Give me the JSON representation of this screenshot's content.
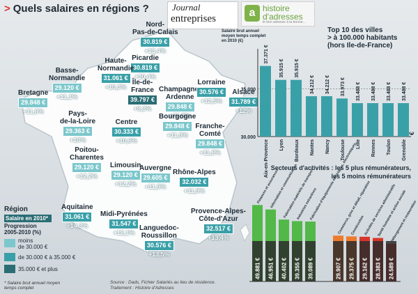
{
  "header": {
    "title": "Quels salaires en régions ?",
    "logo1_top": "Journal",
    "logo1_bottom": "entreprises",
    "logo2_line1": "histoire",
    "logo2_line2": "d'adresses",
    "logo2_line3": "le bon adresse à la bonne..."
  },
  "colors": {
    "dark_teal": "#2a6d74",
    "mid_teal": "#3aa0a8",
    "light_teal": "#7cc7cc",
    "map_land": "#ffffff",
    "pct_color": "#ffffff",
    "green_bar": "#52b848",
    "red_bar": "#d9352a",
    "orange_bar": "#ef7a2c"
  },
  "regions": [
    {
      "name": "Nord-\nPas-de-Calais",
      "value": "30.819 €",
      "pct": "+13,4%",
      "tier": "mid"
    },
    {
      "name": "Picardie",
      "value": "30.819 €",
      "pct": "+10,4%",
      "tier": "mid"
    },
    {
      "name": "Haute-\nNormandie",
      "value": "31.061 €",
      "pct": "+10,3%",
      "tier": "mid"
    },
    {
      "name": "Basse-\nNormandie",
      "value": "29.120 €",
      "pct": "+11,1%",
      "tier": "light"
    },
    {
      "name": "Île-de-\nFrance",
      "value": "39.797 €",
      "pct": "+9,3%",
      "tier": "dark"
    },
    {
      "name": "Champagne-\nArdenne",
      "value": "29.848 €",
      "pct": "+11,8%",
      "tier": "light"
    },
    {
      "name": "Lorraine",
      "value": "30.576 €",
      "pct": "+12,5%",
      "tier": "mid"
    },
    {
      "name": "Alsace",
      "value": "31.789 €",
      "pct": "+12%",
      "tier": "mid"
    },
    {
      "name": "Bretagne",
      "value": "29.848 €",
      "pct": "+11,8%",
      "tier": "light"
    },
    {
      "name": "Pays-\nde-la-Loire",
      "value": "29.363 €",
      "pct": "+10%",
      "tier": "light"
    },
    {
      "name": "Centre",
      "value": "30.333 €",
      "pct": "+10,6%",
      "tier": "mid"
    },
    {
      "name": "Bourgogne",
      "value": "29.848 €",
      "pct": "+11,8%",
      "tier": "light"
    },
    {
      "name": "Franche-\nComté",
      "value": "29.848 €",
      "pct": "+11,8%",
      "tier": "light"
    },
    {
      "name": "Poitou-\nCharentes",
      "value": "29.120 €",
      "pct": "+12,2%",
      "tier": "light"
    },
    {
      "name": "Limousin",
      "value": "29.120 €",
      "pct": "+12,2%",
      "tier": "light"
    },
    {
      "name": "Auvergne",
      "value": "29.605 €",
      "pct": "+11,9%",
      "tier": "light"
    },
    {
      "name": "Rhône-Alpes",
      "value": "32.032 €",
      "pct": "+11,9%",
      "tier": "mid"
    },
    {
      "name": "Aquitaine",
      "value": "31.061 €",
      "pct": "+14,3%",
      "tier": "mid"
    },
    {
      "name": "Midi-Pyrénées",
      "value": "31.547 €",
      "pct": "+12,1%",
      "tier": "mid"
    },
    {
      "name": "Languedoc-\nRoussillon",
      "value": "30.576 €",
      "pct": "+13,5%",
      "tier": "mid"
    },
    {
      "name": "Provence-Alpes-\nCôte-d'Azur",
      "value": "32.517 €",
      "pct": "+13,4%",
      "tier": "mid"
    }
  ],
  "legend": {
    "title": "Région",
    "salaire_label": "Salaire en 2010*",
    "progression_label": "Progression\n2005-2010 (%)",
    "items": [
      "moins\nde 30.000 €",
      "de 30.000 € à 35.000 €",
      "35.000 € et plus"
    ],
    "footnote": "* Salaire brut annuel moyen\ntemps complet"
  },
  "source": "Source : Dads, Fichier Salariés au lieu de résidence.\nTraitement : Histoire d'Adresses",
  "chart_data": [
    {
      "type": "bar",
      "title": "Top 10 des villes\n> à 100.000 habitants\n(hors Ile-de-France)",
      "ylabel": "Salaire brut annuel moyen temps complet en 2010 (€)",
      "ylim": [
        30000,
        38000
      ],
      "yticks": [
        "35.000",
        "30.000"
      ],
      "yticks_values": [
        35000,
        30000
      ],
      "currency_symbol": "€",
      "categories": [
        "Aix-en-Provence",
        "Lyon",
        "Bordeaux",
        "Nantes",
        "Nancy",
        "Toulouse",
        "Lille",
        "Rennes",
        "Toulon",
        "Grenoble"
      ],
      "labels": [
        "37.371 €",
        "35.915 €",
        "35.915 €",
        "34.212 €",
        "34.212 €",
        "33.973 €",
        "33.488 €",
        "33.488 €",
        "33.488 €",
        "33.488 €"
      ],
      "values": [
        37371,
        35915,
        35915,
        34212,
        34212,
        33973,
        33488,
        33488,
        33488,
        33488
      ]
    },
    {
      "type": "bar",
      "title": "Secteurs d'activités : les 5 plus rémunérateurs,\nles 5 moins rémunérateurs",
      "categories_top": [
        "Finances et assurances",
        "Information et communication",
        "Fabrication matériels de transport",
        "Industries extractives",
        "Fabrication d'équipements électriques, électroniques"
      ],
      "top_labels": [
        "49.881 €",
        "46.951 €",
        "40.402 €",
        "39.355 €",
        "39.089 €"
      ],
      "top_values": [
        49881,
        46951,
        40402,
        39355,
        39089
      ],
      "categories_bottom": [
        "Commerce, gros et détail, réparation",
        "Construction",
        "Activités de services administratifs",
        "Santé humaine et action sociale",
        "Hébergement et restauration"
      ],
      "bottom_labels": [
        "29.907 €",
        "29.375 €",
        "29.162 €",
        "28.383 €",
        "24.589 €"
      ],
      "bottom_values": [
        29907,
        29375,
        29162,
        28383,
        24589
      ]
    }
  ]
}
